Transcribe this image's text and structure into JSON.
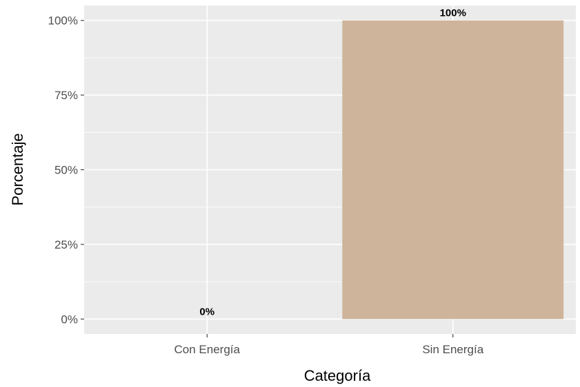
{
  "chart_data": {
    "type": "bar",
    "categories": [
      "Con Energía",
      "Sin Energía"
    ],
    "values": [
      0,
      1
    ],
    "bar_labels": [
      "0%",
      "100%"
    ],
    "xlabel": "Categoría",
    "ylabel": "Porcentaje",
    "ylim": [
      -0.05,
      1.05
    ],
    "y_ticks": [
      0,
      0.25,
      0.5,
      0.75,
      1
    ],
    "y_tick_labels": [
      "0%",
      "25%",
      "50%",
      "75%",
      "100%"
    ],
    "grid": true,
    "legend": "none",
    "bar_color": "#cdb49b",
    "panel_color": "#ebebeb",
    "grid_color": "#ffffff"
  }
}
